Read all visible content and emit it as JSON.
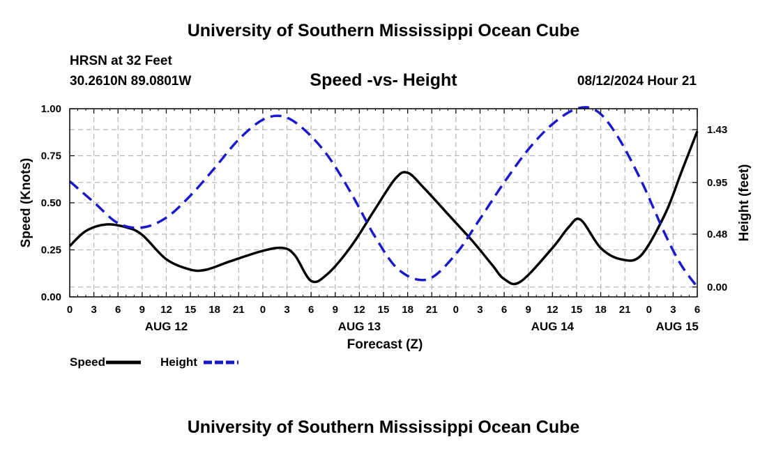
{
  "header": {
    "title": "University of Southern Mississippi Ocean Cube",
    "station_name": "HRSN at 32 Feet",
    "station_coords": "30.2610N  89.0801W",
    "datetime": "08/12/2024 Hour 21"
  },
  "footer": {
    "title": "University of Southern Mississippi Ocean Cube"
  },
  "chart_data": {
    "type": "line",
    "title": "Speed -vs- Height",
    "xlabel": "Forecast (Z)",
    "ylabel": "Speed (Knots)",
    "y2label": "Height (feet)",
    "xlim": [
      0,
      78
    ],
    "ylim": [
      0,
      1
    ],
    "y2lim": [
      -0.09,
      1.62
    ],
    "xticks": [
      0,
      3,
      6,
      9,
      12,
      15,
      18,
      21,
      24,
      27,
      30,
      33,
      36,
      39,
      42,
      45,
      48,
      51,
      54,
      57,
      60,
      63,
      66,
      69,
      72,
      75,
      78
    ],
    "xtick_labels": [
      "0",
      "3",
      "6",
      "9",
      "12",
      "15",
      "18",
      "21",
      "0",
      "3",
      "6",
      "9",
      "12",
      "15",
      "18",
      "21",
      "0",
      "3",
      "6",
      "9",
      "12",
      "15",
      "18",
      "21",
      "0",
      "3",
      "6"
    ],
    "day_labels": [
      {
        "x": 12,
        "label": "AUG 12"
      },
      {
        "x": 36,
        "label": "AUG 13"
      },
      {
        "x": 60,
        "label": "AUG 14"
      },
      {
        "x": 75.5,
        "label": "AUG 15"
      }
    ],
    "yticks": [
      0,
      0.25,
      0.5,
      0.75,
      1.0
    ],
    "ytick_labels": [
      "0.00",
      "0.25",
      "0.50",
      "0.75",
      "1.00"
    ],
    "y2ticks": [
      0,
      0.48,
      0.95,
      1.43
    ],
    "y2tick_labels": [
      "0.00",
      "0.48",
      "0.95",
      "1.43"
    ],
    "grid": true,
    "series": [
      {
        "name": "Speed",
        "axis": "left",
        "color": "#000000",
        "dash": "solid",
        "x": [
          0,
          2,
          4.5,
          7,
          9,
          12,
          15,
          17,
          20,
          24,
          26.5,
          28,
          30,
          32,
          35,
          38,
          40.5,
          42,
          44,
          47,
          50,
          52.5,
          54,
          56,
          60,
          62,
          63.5,
          66,
          68.5,
          71,
          74,
          76,
          78
        ],
        "values": [
          0.27,
          0.35,
          0.385,
          0.37,
          0.33,
          0.2,
          0.145,
          0.145,
          0.19,
          0.245,
          0.26,
          0.22,
          0.085,
          0.12,
          0.27,
          0.47,
          0.63,
          0.66,
          0.58,
          0.44,
          0.3,
          0.17,
          0.095,
          0.08,
          0.26,
          0.37,
          0.41,
          0.26,
          0.2,
          0.22,
          0.44,
          0.66,
          0.88
        ]
      },
      {
        "name": "Height",
        "axis": "right",
        "color": "#1a1acc",
        "dash": "dashed",
        "x": [
          0,
          3,
          6,
          9,
          12,
          15,
          18,
          21,
          24,
          26.5,
          29,
          32,
          35,
          38,
          41,
          44.5,
          48,
          51,
          54,
          57,
          60,
          63,
          65.5,
          68,
          71,
          74,
          76,
          78
        ],
        "values": [
          0.96,
          0.77,
          0.58,
          0.54,
          0.63,
          0.83,
          1.08,
          1.34,
          1.52,
          1.55,
          1.44,
          1.2,
          0.85,
          0.45,
          0.15,
          0.07,
          0.3,
          0.62,
          0.95,
          1.25,
          1.48,
          1.62,
          1.6,
          1.38,
          0.97,
          0.48,
          0.2,
          0
        ]
      }
    ],
    "legend": {
      "position": "bottom-left",
      "items": [
        {
          "label": "Speed",
          "color": "#000000",
          "dash": "solid"
        },
        {
          "label": "Height",
          "color": "#1a1acc",
          "dash": "dashed"
        }
      ]
    }
  }
}
